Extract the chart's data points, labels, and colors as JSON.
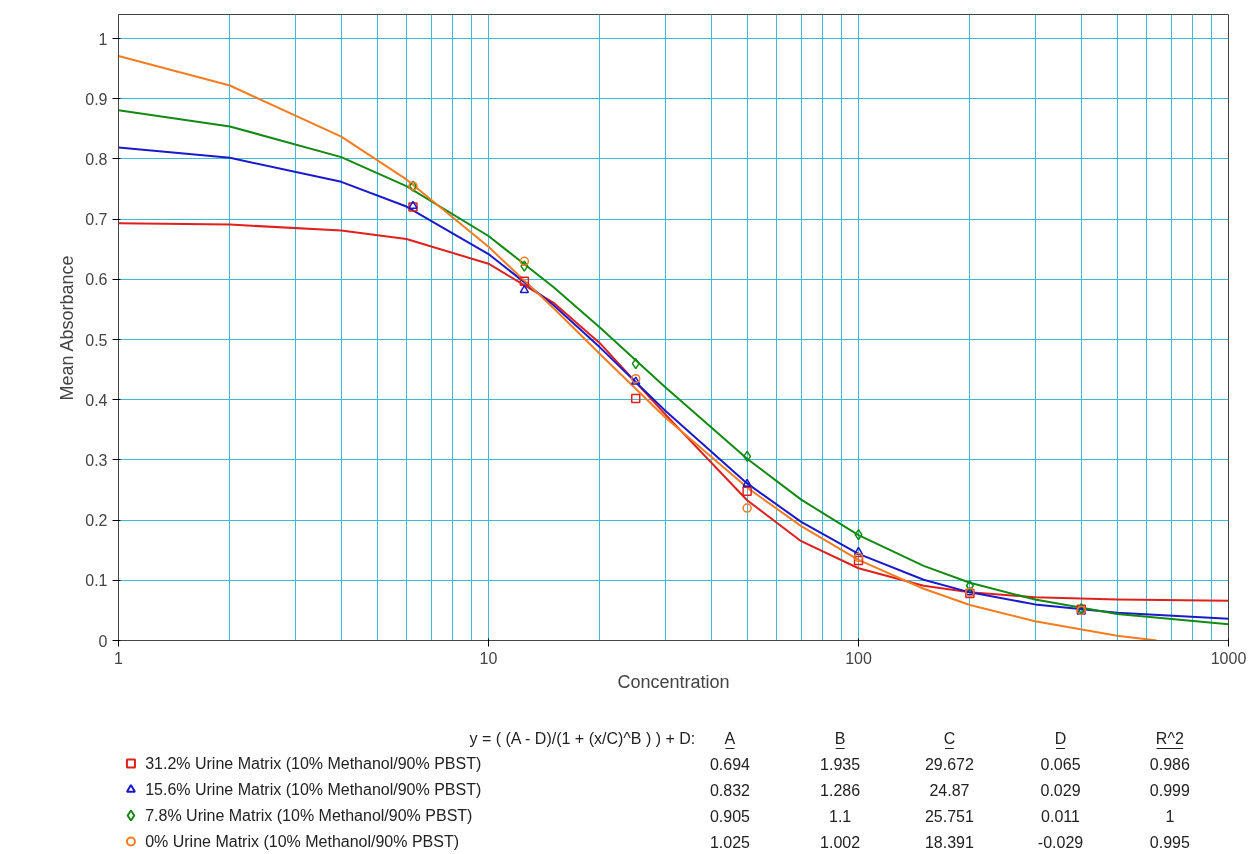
{
  "chart_data": {
    "type": "scatter",
    "xlabel": "Concentration",
    "ylabel": "Mean Absorbance",
    "x": [
      6.25,
      12.5,
      25,
      50,
      100,
      200,
      400
    ],
    "log": "x",
    "grid": true,
    "legend": "bottom",
    "xlim": [
      1,
      1000
    ],
    "xticks": [
      1,
      10,
      100,
      1000
    ],
    "ylim": [
      0,
      1.04
    ],
    "yticks": [
      0,
      0.1,
      0.2,
      0.3,
      0.4,
      0.5,
      0.6,
      0.7,
      0.8,
      0.9,
      1
    ],
    "series": [
      {
        "type": "line",
        "color": "#e0201c",
        "x": [
          1,
          2,
          4,
          6,
          10,
          15,
          20,
          30,
          50,
          70,
          100,
          150,
          200,
          300,
          500,
          1000
        ],
        "values": [
          0.693,
          0.691,
          0.681,
          0.667,
          0.626,
          0.561,
          0.494,
          0.376,
          0.233,
          0.165,
          0.12,
          0.091,
          0.08,
          0.072,
          0.068,
          0.066
        ]
      },
      {
        "type": "line",
        "color": "#1a1acc",
        "x": [
          1,
          2,
          4,
          6,
          10,
          15,
          20,
          30,
          50,
          70,
          100,
          150,
          200,
          300,
          500,
          1000
        ],
        "values": [
          0.819,
          0.802,
          0.762,
          0.721,
          0.642,
          0.557,
          0.487,
          0.382,
          0.261,
          0.197,
          0.144,
          0.101,
          0.08,
          0.06,
          0.046,
          0.036
        ]
      },
      {
        "type": "line",
        "color": "#128a12",
        "x": [
          1,
          2,
          4,
          6,
          10,
          15,
          20,
          30,
          50,
          70,
          100,
          150,
          200,
          300,
          500,
          1000
        ],
        "values": [
          0.881,
          0.854,
          0.803,
          0.755,
          0.672,
          0.587,
          0.52,
          0.421,
          0.302,
          0.234,
          0.175,
          0.124,
          0.096,
          0.068,
          0.044,
          0.027
        ]
      },
      {
        "type": "line",
        "color": "#f57c20",
        "x": [
          1,
          2,
          4,
          6,
          10,
          15,
          20,
          30,
          50,
          70,
          100,
          150,
          200,
          300,
          500,
          640
        ],
        "values": [
          0.971,
          0.922,
          0.837,
          0.766,
          0.654,
          0.552,
          0.476,
          0.371,
          0.254,
          0.19,
          0.134,
          0.086,
          0.059,
          0.032,
          0.008,
          0.0
        ]
      },
      {
        "name": "31.2% Urine Matrix (10% Methanol/90% PBST)",
        "color": "#e0201c",
        "marker": "square",
        "values": [
          0.72,
          0.597,
          0.402,
          0.248,
          0.133,
          0.078,
          0.052
        ]
      },
      {
        "name": "15.6% Urine Matrix (10% Methanol/90% PBST)",
        "color": "#1a1acc",
        "marker": "triangle",
        "values": [
          0.722,
          0.582,
          0.43,
          0.26,
          0.147,
          0.08,
          0.048
        ]
      },
      {
        "name": "7.8% Urine Matrix (10% Methanol/90% PBST)",
        "color": "#128a12",
        "marker": "diamond",
        "values": [
          0.755,
          0.622,
          0.46,
          0.306,
          0.176,
          0.091,
          0.053
        ]
      },
      {
        "name": "0% Urine Matrix (10% Methanol/90% PBST)",
        "color": "#f57c20",
        "marker": "circle",
        "values": [
          0.755,
          0.63,
          0.435,
          0.22,
          0.138,
          0.08,
          0.05
        ]
      }
    ],
    "annotations": [
      "y = ( (A - D)/(1 + (x/C)^B ) ) + D:",
      "A",
      "B",
      "C",
      "D",
      "R^2",
      "0.694",
      "1.935",
      "29.672",
      "0.065",
      "0.986",
      "0.832",
      "1.286",
      "24.87",
      "0.029",
      "0.999",
      "0.905",
      "1.1",
      "25.751",
      "0.011",
      "1",
      "1.025",
      "1.002",
      "18.391",
      "-0.029",
      "0.995"
    ]
  }
}
